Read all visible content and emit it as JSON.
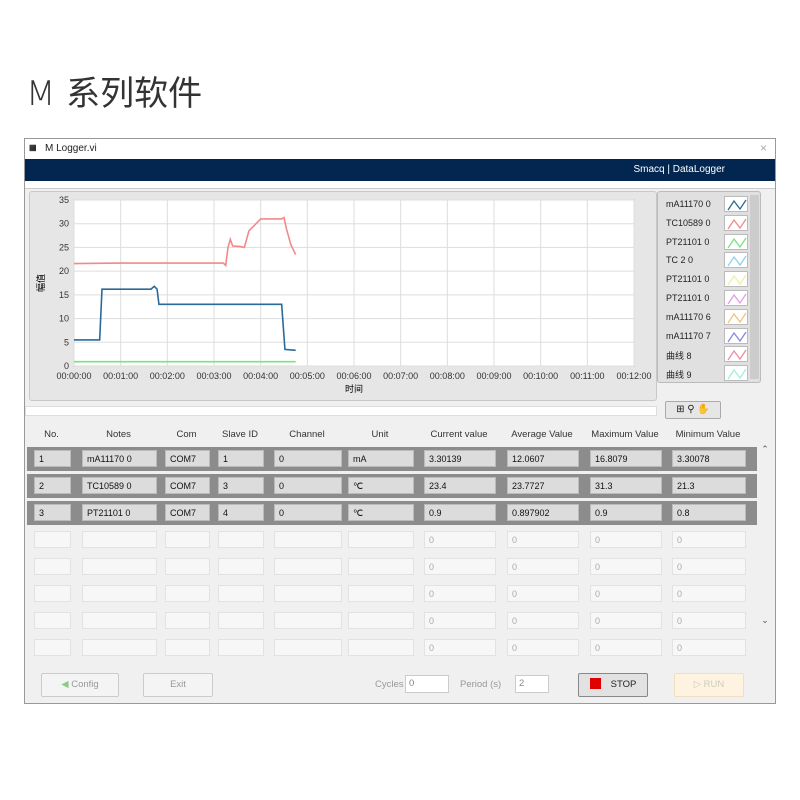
{
  "page_title": "M 系列软件",
  "window": {
    "title": "M Logger.vi",
    "banner": "Smacq | DataLogger",
    "close": "×"
  },
  "chart_data": {
    "type": "line",
    "xlabel": "时间",
    "ylabel": "幅值",
    "xlim_minutes": [
      0,
      12
    ],
    "ylim": [
      0,
      35
    ],
    "x_ticks": [
      "00:00:00",
      "00:01:00",
      "00:02:00",
      "00:03:00",
      "00:04:00",
      "00:05:00",
      "00:06:00",
      "00:07:00",
      "00:08:00",
      "00:09:00",
      "00:10:00",
      "00:11:00",
      "00:12:00"
    ],
    "y_ticks": [
      0,
      5,
      10,
      15,
      20,
      25,
      30,
      35
    ],
    "grid": true,
    "series": [
      {
        "name": "mA11170 0",
        "color": "#2a6a9a",
        "x_minutes": [
          0,
          0.55,
          0.6,
          1.65,
          1.72,
          1.78,
          1.82,
          4.45,
          4.52,
          4.75
        ],
        "values": [
          5.5,
          5.5,
          16.2,
          16.2,
          16.8,
          16.2,
          13,
          13,
          3.5,
          3.3
        ]
      },
      {
        "name": "TC10589 0",
        "color": "#f08a8a",
        "x_minutes": [
          0,
          1,
          2,
          3.2,
          3.25,
          3.3,
          3.35,
          3.4,
          3.55,
          3.65,
          3.75,
          4.0,
          4.45,
          4.5,
          4.55,
          4.65,
          4.75
        ],
        "values": [
          21.6,
          21.7,
          21.7,
          21.7,
          21.2,
          25,
          26.7,
          25.3,
          25.2,
          25,
          28.5,
          31,
          31,
          31.3,
          29,
          25.5,
          23.5
        ]
      },
      {
        "name": "PT21101 0",
        "color": "#7ee07e",
        "x_minutes": [
          0,
          4.75
        ],
        "values": [
          0.9,
          0.9
        ]
      }
    ],
    "legend_placement": "right"
  },
  "legend": [
    {
      "name": "mA11170 0",
      "color": "#2a6a9a"
    },
    {
      "name": "TC10589 0",
      "color": "#f08a8a"
    },
    {
      "name": "PT21101 0",
      "color": "#7ee07e"
    },
    {
      "name": "TC    2 0",
      "color": "#8fd0ef"
    },
    {
      "name": "PT21101 0",
      "color": "#eef0a0"
    },
    {
      "name": "PT21101 0",
      "color": "#e69be6"
    },
    {
      "name": "mA11170 6",
      "color": "#f2c27a"
    },
    {
      "name": "mA11170 7",
      "color": "#8888e0"
    },
    {
      "name": "曲线 8",
      "color": "#f08aa0"
    },
    {
      "name": "曲线 9",
      "color": "#9ef0e0"
    }
  ],
  "tools_label": "⊞ ⚲ ✋",
  "table": {
    "columns": [
      "No.",
      "Notes",
      "Com",
      "Slave ID",
      "Channel",
      "Unit",
      "Current value",
      "Average Value",
      "Maximum Value",
      "Minimum Value"
    ],
    "rows": [
      [
        "1",
        "mA11170 0",
        "COM7",
        "1",
        "0",
        "mA",
        "3.30139",
        "12.0607",
        "16.8079",
        "3.30078"
      ],
      [
        "2",
        "TC10589 0",
        "COM7",
        "3",
        "0",
        "℃",
        "23.4",
        "23.7727",
        "31.3",
        "21.3"
      ],
      [
        "3",
        "PT21101 0",
        "COM7",
        "4",
        "0",
        "℃",
        "0.9",
        "0.897902",
        "0.9",
        "0.8"
      ],
      [
        "",
        "",
        "",
        "",
        "",
        "",
        "0",
        "0",
        "0",
        "0"
      ],
      [
        "",
        "",
        "",
        "",
        "",
        "",
        "0",
        "0",
        "0",
        "0"
      ],
      [
        "",
        "",
        "",
        "",
        "",
        "",
        "0",
        "0",
        "0",
        "0"
      ],
      [
        "",
        "",
        "",
        "",
        "",
        "",
        "0",
        "0",
        "0",
        "0"
      ],
      [
        "",
        "",
        "",
        "",
        "",
        "",
        "0",
        "0",
        "0",
        "0"
      ]
    ]
  },
  "controls": {
    "config": "Config",
    "exit": "Exit",
    "cycles_label": "Cycles",
    "cycles_value": "0",
    "period_label": "Period  (s)",
    "period_value": "2",
    "stop": "STOP",
    "run": "RUN",
    "stop_color": "#e00000"
  }
}
